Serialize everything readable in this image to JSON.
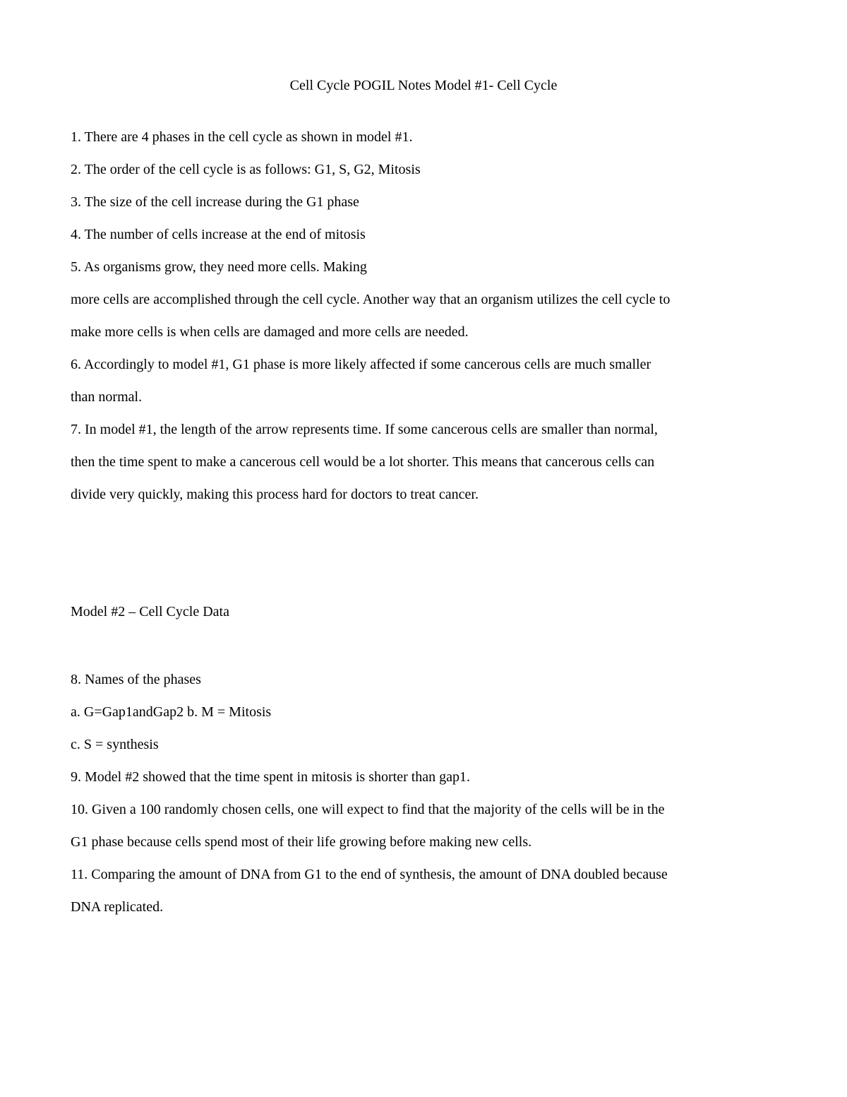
{
  "title": "Cell Cycle POGIL Notes Model #1- Cell Cycle",
  "lines": {
    "l1": "1. There are 4 phases in the cell cycle as shown in model #1.",
    "l2": "2. The order of the cell cycle is as follows: G1, S, G2, Mitosis",
    "l3": "3. The size of the cell increase during the G1 phase",
    "l4": "4. The number of cells increase at the end of mitosis",
    "l5": "5. As organisms grow, they need more cells. Making",
    "l6": "more cells are accomplished through the cell cycle. Another way that an organism utilizes the cell cycle to",
    "l7": "make more cells is when cells are damaged and more cells are needed.",
    "l8": "6. Accordingly to model #1, G1 phase is more likely affected if some cancerous cells are much smaller",
    "l9": "than normal.",
    "l10": "7. In model #1, the length of the arrow represents time. If some cancerous cells are smaller than normal,",
    "l11": "then the time spent to make a cancerous cell would be a lot shorter. This means that cancerous cells can",
    "l12": "divide very quickly, making this process hard for doctors to treat cancer.",
    "l13": "Model #2 – Cell Cycle Data",
    "l14": "8. Names of the phases",
    "l15": "a. G=Gap1andGap2 b. M = Mitosis",
    "l16": "c. S = synthesis",
    "l17": "9. Model #2 showed that the time spent in mitosis is shorter than gap1.",
    "l18": "10. Given a 100 randomly chosen cells, one will expect to find that the majority of the cells will be in the",
    "l19": "G1 phase because cells spend most of their life growing before making new cells.",
    "l20": "11. Comparing the amount of DNA from G1 to the end of synthesis, the amount of DNA doubled because",
    "l21": "DNA replicated."
  }
}
